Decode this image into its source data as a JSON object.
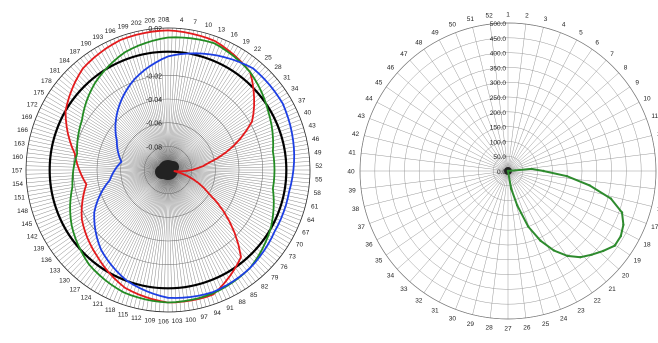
{
  "chart_data": [
    {
      "type": "line",
      "subtype": "polar",
      "angular_ticks": [
        1,
        4,
        7,
        10,
        13,
        16,
        19,
        22,
        25,
        28,
        31,
        34,
        37,
        40,
        43,
        46,
        49,
        52,
        55,
        58,
        61,
        64,
        67,
        70,
        73,
        76,
        79,
        82,
        85,
        88,
        91,
        94,
        97,
        100,
        103,
        106,
        109,
        112,
        115,
        118,
        121,
        124,
        127,
        130,
        133,
        136,
        139,
        142,
        145,
        148,
        151,
        154,
        157,
        160,
        163,
        166,
        169,
        172,
        175,
        178,
        181,
        184,
        187,
        190,
        193,
        196,
        199,
        202,
        205,
        208
      ],
      "angular_range": [
        1,
        208
      ],
      "radial_ticks": [
        "0.02",
        "-0.02",
        "-0.04",
        "-0.06",
        "-0.08"
      ],
      "radial_values": [
        0.02,
        -0.02,
        -0.04,
        -0.06,
        -0.08
      ],
      "rlim": [
        -0.1,
        0.02
      ],
      "grid": true,
      "series": [
        {
          "color": "#000000",
          "values": {
            "theta": [
              0,
              90,
              180,
              270,
              360
            ],
            "r": [
              0.0,
              0.0,
              0.0,
              0.0,
              0.0
            ]
          }
        },
        {
          "color": "#e31a1c",
          "values": {
            "theta": [
              0,
              20,
              40,
              60,
              80,
              100,
              120,
              140,
              160,
              180,
              200,
              220,
              240,
              260,
              280,
              300,
              320,
              340,
              360
            ],
            "r": [
              0.018,
              0.016,
              0.008,
              -0.018,
              -0.065,
              -0.095,
              -0.06,
              -0.004,
              0.012,
              0.012,
              0.006,
              -0.006,
              -0.016,
              -0.03,
              -0.02,
              0.0,
              0.012,
              0.017,
              0.018
            ]
          }
        },
        {
          "color": "#228b22",
          "values": {
            "theta": [
              0,
              20,
              40,
              60,
              80,
              100,
              120,
              140,
              160,
              180,
              200,
              220,
              240,
              260,
              280,
              300,
              320,
              340,
              360
            ],
            "r": [
              0.012,
              0.014,
              0.008,
              -0.002,
              -0.01,
              -0.01,
              0.0,
              0.008,
              0.011,
              0.012,
              0.01,
              0.004,
              -0.006,
              -0.018,
              -0.022,
              -0.016,
              -0.004,
              0.006,
              0.012
            ]
          }
        },
        {
          "color": "#1c3ee3",
          "values": {
            "theta": [
              0,
              20,
              40,
              60,
              80,
              100,
              120,
              140,
              160,
              180,
              200,
              220,
              240,
              260,
              280,
              300,
              320,
              340,
              360
            ],
            "r": [
              -0.004,
              0.004,
              0.012,
              0.012,
              0.008,
              0.004,
              0.004,
              0.008,
              0.01,
              0.008,
              0.0,
              -0.012,
              -0.028,
              -0.05,
              -0.06,
              -0.05,
              -0.034,
              -0.018,
              -0.004
            ]
          }
        }
      ]
    },
    {
      "type": "line",
      "subtype": "polar",
      "angular_ticks": [
        1,
        2,
        3,
        4,
        5,
        6,
        7,
        8,
        9,
        10,
        11,
        12,
        13,
        14,
        15,
        16,
        17,
        18,
        19,
        20,
        21,
        22,
        23,
        24,
        25,
        26,
        27,
        28,
        29,
        30,
        31,
        32,
        33,
        34,
        35,
        36,
        37,
        38,
        39,
        40,
        41,
        42,
        43,
        44,
        45,
        46,
        47,
        48,
        49,
        50,
        51,
        52
      ],
      "angular_range": [
        1,
        52
      ],
      "radial_ticks": [
        "0.0",
        "50.0",
        "100.0",
        "150.0",
        "200.0",
        "250.0",
        "300.0",
        "350.0",
        "400.0",
        "450.0",
        "500.0"
      ],
      "rlim": [
        0,
        500
      ],
      "grid": true,
      "series": [
        {
          "color": "#2e8b2e",
          "values": {
            "theta": [
              80,
              85,
              90,
              95,
              100,
              105,
              110,
              115,
              120,
              125,
              130,
              135,
              140,
              145,
              150,
              155,
              160,
              165,
              170,
              175
            ],
            "r": [
              0,
              80,
              120,
              200,
              280,
              360,
              410,
              430,
              440,
              440,
              420,
              400,
              380,
              350,
              310,
              260,
              200,
              120,
              60,
              0
            ]
          }
        }
      ]
    }
  ]
}
